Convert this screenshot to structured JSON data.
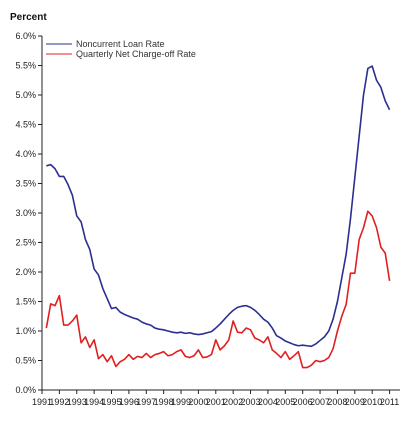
{
  "chart_data": {
    "type": "line",
    "y_unit_label": "Percent",
    "ylim": [
      0,
      6
    ],
    "y_ticks": [
      "0.0%",
      "0.5%",
      "1.0%",
      "1.5%",
      "2.0%",
      "2.5%",
      "3.0%",
      "3.5%",
      "4.0%",
      "4.5%",
      "5.0%",
      "5.5%",
      "6.0%"
    ],
    "y_tick_values": [
      0,
      0.5,
      1,
      1.5,
      2,
      2.5,
      3,
      3.5,
      4,
      4.5,
      5,
      5.5,
      6
    ],
    "xlim": [
      1991,
      2011.6
    ],
    "x_ticks": [
      "1991",
      "1992",
      "1993",
      "1994",
      "1995",
      "1996",
      "1997",
      "1998",
      "1999",
      "2000",
      "2001",
      "2002",
      "2003",
      "2004",
      "2005",
      "2006",
      "2007",
      "2008",
      "2009",
      "2010",
      "2011"
    ],
    "x_tick_values": [
      1991,
      1992,
      1993,
      1994,
      1995,
      1996,
      1997,
      1998,
      1999,
      2000,
      2001,
      2002,
      2003,
      2004,
      2005,
      2006,
      2007,
      2008,
      2009,
      2010,
      2011
    ],
    "grid": false,
    "legend_position": "top-left",
    "series": [
      {
        "name": "Noncurrent Loan Rate",
        "color": "#2b2f8f",
        "x": [
          1991.25,
          1991.5,
          1991.75,
          1992,
          1992.25,
          1992.5,
          1992.75,
          1993,
          1993.25,
          1993.5,
          1993.75,
          1994,
          1994.25,
          1994.5,
          1994.75,
          1995,
          1995.25,
          1995.5,
          1995.75,
          1996,
          1996.25,
          1996.5,
          1996.75,
          1997,
          1997.25,
          1997.5,
          1997.75,
          1998,
          1998.25,
          1998.5,
          1998.75,
          1999,
          1999.25,
          1999.5,
          1999.75,
          2000,
          2000.25,
          2000.5,
          2000.75,
          2001,
          2001.25,
          2001.5,
          2001.75,
          2002,
          2002.25,
          2002.5,
          2002.75,
          2003,
          2003.25,
          2003.5,
          2003.75,
          2004,
          2004.25,
          2004.5,
          2004.75,
          2005,
          2005.25,
          2005.5,
          2005.75,
          2006,
          2006.25,
          2006.5,
          2006.75,
          2007,
          2007.25,
          2007.5,
          2007.75,
          2008,
          2008.25,
          2008.5,
          2008.75,
          2009,
          2009.25,
          2009.5,
          2009.75,
          2010,
          2010.25,
          2010.5,
          2010.75,
          2011
        ],
        "values": [
          3.8,
          3.82,
          3.75,
          3.62,
          3.62,
          3.48,
          3.3,
          2.95,
          2.85,
          2.55,
          2.38,
          2.05,
          1.95,
          1.72,
          1.55,
          1.38,
          1.4,
          1.32,
          1.28,
          1.25,
          1.22,
          1.2,
          1.15,
          1.12,
          1.1,
          1.05,
          1.03,
          1.02,
          1.0,
          0.98,
          0.97,
          0.98,
          0.96,
          0.97,
          0.95,
          0.94,
          0.95,
          0.97,
          0.99,
          1.05,
          1.12,
          1.2,
          1.28,
          1.35,
          1.4,
          1.42,
          1.43,
          1.4,
          1.35,
          1.28,
          1.2,
          1.15,
          1.05,
          0.92,
          0.88,
          0.83,
          0.8,
          0.77,
          0.75,
          0.76,
          0.75,
          0.74,
          0.78,
          0.84,
          0.9,
          1.0,
          1.2,
          1.5,
          1.9,
          2.3,
          2.9,
          3.6,
          4.3,
          5.0,
          5.45,
          5.49,
          5.25,
          5.13,
          4.9,
          4.75
        ]
      },
      {
        "name": "Quarterly Net Charge-off Rate",
        "color": "#e02020",
        "x": [
          1991.25,
          1991.5,
          1991.75,
          1992,
          1992.25,
          1992.5,
          1992.75,
          1993,
          1993.25,
          1993.5,
          1993.75,
          1994,
          1994.25,
          1994.5,
          1994.75,
          1995,
          1995.25,
          1995.5,
          1995.75,
          1996,
          1996.25,
          1996.5,
          1996.75,
          1997,
          1997.25,
          1997.5,
          1997.75,
          1998,
          1998.25,
          1998.5,
          1998.75,
          1999,
          1999.25,
          1999.5,
          1999.75,
          2000,
          2000.25,
          2000.5,
          2000.75,
          2001,
          2001.25,
          2001.5,
          2001.75,
          2002,
          2002.25,
          2002.5,
          2002.75,
          2003,
          2003.25,
          2003.5,
          2003.75,
          2004,
          2004.25,
          2004.5,
          2004.75,
          2005,
          2005.25,
          2005.5,
          2005.75,
          2006,
          2006.25,
          2006.5,
          2006.75,
          2007,
          2007.25,
          2007.5,
          2007.75,
          2008,
          2008.25,
          2008.5,
          2008.75,
          2009,
          2009.25,
          2009.5,
          2009.75,
          2010,
          2010.25,
          2010.5,
          2010.75,
          2011
        ],
        "values": [
          1.05,
          1.46,
          1.43,
          1.6,
          1.1,
          1.1,
          1.17,
          1.27,
          0.8,
          0.9,
          0.72,
          0.85,
          0.53,
          0.6,
          0.48,
          0.58,
          0.4,
          0.48,
          0.52,
          0.6,
          0.52,
          0.57,
          0.55,
          0.62,
          0.55,
          0.6,
          0.62,
          0.65,
          0.58,
          0.6,
          0.65,
          0.68,
          0.57,
          0.55,
          0.58,
          0.68,
          0.55,
          0.56,
          0.6,
          0.85,
          0.68,
          0.75,
          0.85,
          1.17,
          0.98,
          0.97,
          1.05,
          1.02,
          0.88,
          0.85,
          0.8,
          0.9,
          0.68,
          0.62,
          0.55,
          0.65,
          0.52,
          0.58,
          0.65,
          0.38,
          0.38,
          0.42,
          0.5,
          0.48,
          0.5,
          0.55,
          0.7,
          1.0,
          1.25,
          1.45,
          1.98,
          1.98,
          2.55,
          2.75,
          3.03,
          2.95,
          2.75,
          2.42,
          2.32,
          1.85
        ]
      }
    ]
  }
}
